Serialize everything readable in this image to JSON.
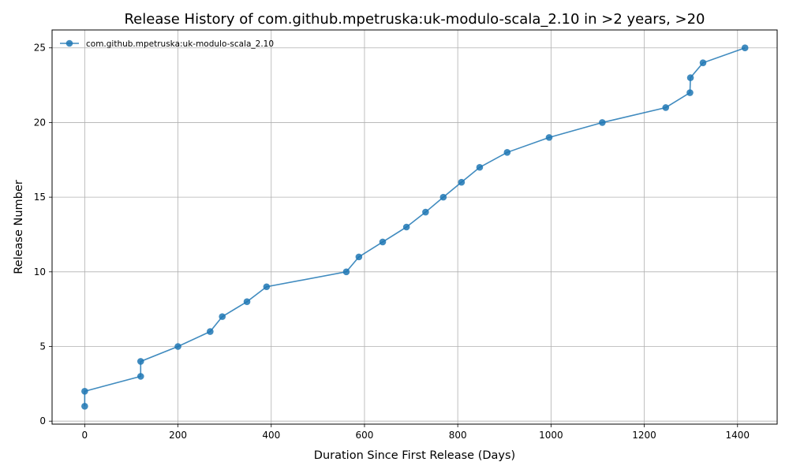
{
  "chart_data": {
    "type": "line",
    "title": "Release History of com.github.mpetruska:uk-modulo-scala_2.10 in >2 years, >20",
    "xlabel": "Duration Since First Release (Days)",
    "ylabel": "Release Number",
    "xlim": [
      -70,
      1485
    ],
    "ylim": [
      -0.2,
      26.2
    ],
    "xticks": [
      0,
      200,
      400,
      600,
      800,
      1000,
      1200,
      1400
    ],
    "yticks": [
      0,
      5,
      10,
      15,
      20,
      25
    ],
    "grid": true,
    "legend_position": "top-left",
    "series": [
      {
        "name": "com.github.mpetruska:uk-modulo-scala_2.10",
        "color": "#1f77b4",
        "marker": "circle",
        "x": [
          0,
          0,
          120,
          120,
          200,
          269,
          295,
          348,
          390,
          561,
          588,
          639,
          690,
          731,
          769,
          808,
          847,
          906,
          996,
          1110,
          1246,
          1298,
          1299,
          1326,
          1416
        ],
        "y": [
          1,
          2,
          3,
          4,
          5,
          6,
          7,
          8,
          9,
          10,
          11,
          12,
          13,
          14,
          15,
          16,
          17,
          18,
          19,
          20,
          21,
          22,
          23,
          24,
          25
        ]
      }
    ]
  }
}
